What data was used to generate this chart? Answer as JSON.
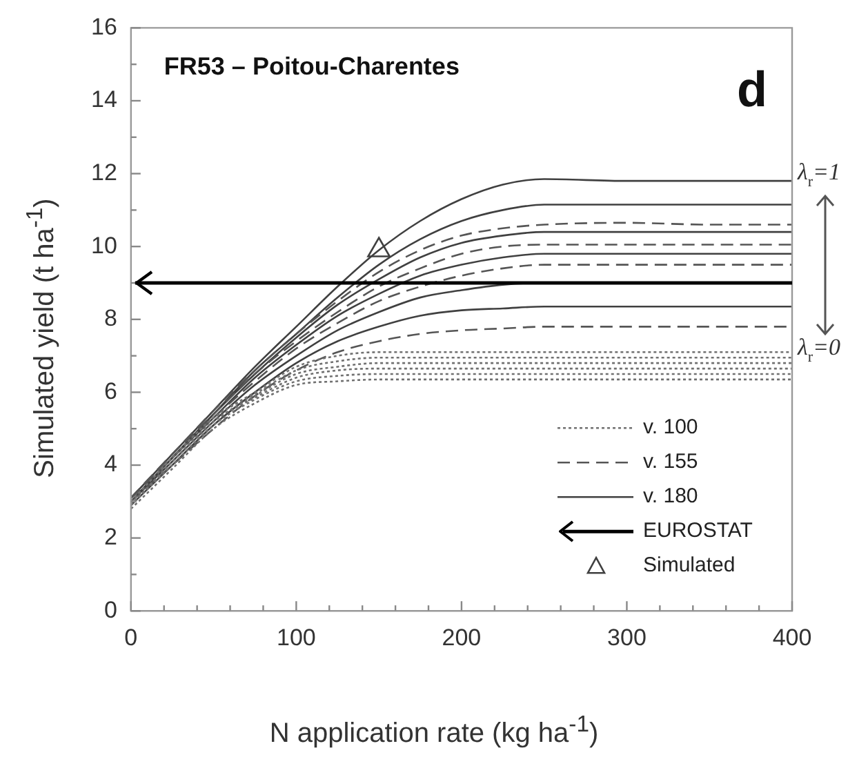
{
  "chart_data": {
    "type": "line",
    "title": "FR53 – Poitou-Charentes",
    "xlabel": "N application rate (kg ha$^{-1}$)",
    "ylabel": "Simulated  yield (t ha$^{-1}$)",
    "annotations": [
      "d",
      "λ$_{r}$=1",
      "λ$_{r}$=0"
    ],
    "x": [
      0,
      25,
      50,
      75,
      100,
      125,
      150,
      175,
      200,
      225,
      250,
      300,
      350,
      400
    ],
    "xlim": [
      0,
      400
    ],
    "xticks": [
      0,
      {
        "value": 20,
        "label": null
      },
      {
        "value": 40,
        "label": null
      },
      {
        "value": 60,
        "label": null
      },
      {
        "value": 80,
        "label": null
      },
      100,
      {
        "value": 120,
        "label": null
      },
      {
        "value": 140,
        "label": null
      },
      {
        "value": 160,
        "label": null
      },
      {
        "value": 180,
        "label": null
      },
      200,
      {
        "value": 220,
        "label": null
      },
      {
        "value": 240,
        "label": null
      },
      {
        "value": 260,
        "label": null
      },
      {
        "value": 280,
        "label": null
      },
      300,
      {
        "value": 320,
        "label": null
      },
      {
        "value": 340,
        "label": null
      },
      {
        "value": 360,
        "label": null
      },
      {
        "value": 380,
        "label": null
      },
      400
    ],
    "ylim": [
      0,
      16
    ],
    "yticks": [
      0,
      {
        "value": 1,
        "label": null
      },
      2,
      {
        "value": 3,
        "label": null
      },
      4,
      {
        "value": 5,
        "label": null
      },
      6,
      {
        "value": 7,
        "label": null
      },
      8,
      {
        "value": 9,
        "label": null
      },
      10,
      {
        "value": 11,
        "label": null
      },
      12,
      {
        "value": 13,
        "label": null
      },
      14,
      {
        "value": 15,
        "label": null
      },
      16
    ],
    "grid": false,
    "legend": "bottom right",
    "marker": "none",
    "ref_lines": [
      {
        "axis": "y",
        "value": 9,
        "label": "EUROSTAT",
        "color": "#000000",
        "line_style": "solid"
      }
    ],
    "series": [
      {
        "name": "v. 100",
        "color": "#707070",
        "line_style": "dotted",
        "values": [
          3.0,
          4.2,
          5.3,
          6.0,
          6.7,
          7.0,
          7.1,
          7.1,
          7.1,
          7.1,
          7.1,
          7.1,
          7.1,
          7.1
        ]
      },
      {
        "color": "#707070",
        "line_style": "dotted",
        "values": [
          3.0,
          4.2,
          5.3,
          5.95,
          6.6,
          6.85,
          6.95,
          6.95,
          6.95,
          6.95,
          6.95,
          6.95,
          6.95,
          6.95
        ]
      },
      {
        "color": "#707070",
        "line_style": "dotted",
        "values": [
          2.9,
          4.1,
          5.2,
          5.9,
          6.5,
          6.7,
          6.8,
          6.8,
          6.8,
          6.8,
          6.8,
          6.8,
          6.8,
          6.8
        ]
      },
      {
        "color": "#707070",
        "line_style": "dotted",
        "values": [
          2.9,
          4.1,
          5.2,
          5.85,
          6.4,
          6.6,
          6.65,
          6.65,
          6.65,
          6.65,
          6.65,
          6.65,
          6.65,
          6.65
        ]
      },
      {
        "color": "#707070",
        "line_style": "dotted",
        "values": [
          2.9,
          4.0,
          5.1,
          5.8,
          6.3,
          6.45,
          6.5,
          6.5,
          6.5,
          6.5,
          6.5,
          6.5,
          6.5,
          6.5
        ]
      },
      {
        "color": "#707070",
        "line_style": "dotted",
        "values": [
          2.8,
          3.9,
          5.0,
          5.7,
          6.2,
          6.3,
          6.35,
          6.35,
          6.35,
          6.35,
          6.35,
          6.35,
          6.35,
          6.35
        ]
      },
      {
        "name": "v. 155",
        "color": "#555555",
        "line_style": "dashed",
        "values": [
          3.1,
          4.3,
          5.5,
          6.6,
          7.6,
          8.5,
          9.3,
          9.9,
          10.3,
          10.5,
          10.6,
          10.65,
          10.6,
          10.6
        ]
      },
      {
        "color": "#555555",
        "line_style": "dashed",
        "values": [
          3.1,
          4.3,
          5.4,
          6.5,
          7.4,
          8.2,
          8.9,
          9.4,
          9.8,
          10.0,
          10.05,
          10.05,
          10.05,
          10.05
        ]
      },
      {
        "color": "#555555",
        "line_style": "dashed",
        "values": [
          3.1,
          4.2,
          5.3,
          6.3,
          7.2,
          7.9,
          8.5,
          8.9,
          9.2,
          9.4,
          9.5,
          9.5,
          9.5,
          9.5
        ]
      },
      {
        "color": "#555555",
        "line_style": "dashed",
        "values": [
          3.0,
          4.0,
          5.0,
          5.9,
          6.6,
          7.1,
          7.4,
          7.6,
          7.7,
          7.75,
          7.8,
          7.8,
          7.8,
          7.8
        ]
      },
      {
        "name": "v. 180",
        "color": "#404040",
        "line_style": "solid",
        "values": [
          3.1,
          4.3,
          5.5,
          6.7,
          7.8,
          8.9,
          9.9,
          10.7,
          11.3,
          11.7,
          11.85,
          11.8,
          11.8,
          11.8
        ]
      },
      {
        "color": "#404040",
        "line_style": "solid",
        "values": [
          3.0,
          4.2,
          5.4,
          6.6,
          7.6,
          8.6,
          9.5,
          10.2,
          10.7,
          11.0,
          11.15,
          11.15,
          11.15,
          11.15
        ]
      },
      {
        "color": "#404040",
        "line_style": "solid",
        "values": [
          3.0,
          4.2,
          5.4,
          6.5,
          7.5,
          8.4,
          9.1,
          9.7,
          10.1,
          10.3,
          10.4,
          10.4,
          10.4,
          10.4
        ]
      },
      {
        "color": "#404040",
        "line_style": "solid",
        "values": [
          3.0,
          4.2,
          5.3,
          6.4,
          7.3,
          8.1,
          8.7,
          9.2,
          9.5,
          9.7,
          9.8,
          9.8,
          9.8,
          9.8
        ]
      },
      {
        "color": "#404040",
        "line_style": "solid",
        "values": [
          3.0,
          4.1,
          5.2,
          6.2,
          7.0,
          7.7,
          8.2,
          8.6,
          8.8,
          8.95,
          9.0,
          9.0,
          9.0,
          9.0
        ]
      },
      {
        "color": "#404040",
        "line_style": "solid",
        "values": [
          2.9,
          4.0,
          5.1,
          6.0,
          6.8,
          7.4,
          7.8,
          8.1,
          8.25,
          8.3,
          8.35,
          8.35,
          8.35,
          8.35
        ]
      },
      {
        "name": "Simulated",
        "type": "scatter",
        "marker": "triangle",
        "color": "#404040",
        "x": [
          150
        ],
        "values": [
          9.9
        ]
      }
    ]
  }
}
